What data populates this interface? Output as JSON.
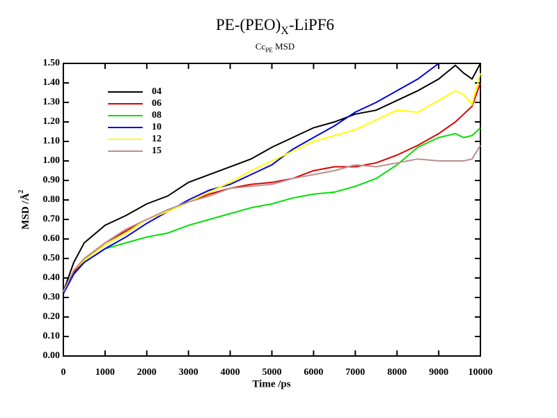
{
  "chart_data": {
    "type": "line",
    "title": [
      "PE-(PEO)",
      "X",
      "-LiPF6"
    ],
    "subtitle": [
      "Cc",
      "PE",
      " MSD"
    ],
    "x_label": "Time /ps",
    "y_label": [
      "MSD /Å",
      "2"
    ],
    "x": [
      0,
      250,
      500,
      1000,
      1500,
      2000,
      2500,
      3000,
      3500,
      4000,
      4500,
      5000,
      5500,
      6000,
      6500,
      7000,
      7500,
      8000,
      8500,
      9000,
      9400,
      9600,
      9800,
      10000
    ],
    "series": [
      {
        "name": "04",
        "color": "#000000",
        "values": [
          0.33,
          0.48,
          0.58,
          0.67,
          0.72,
          0.78,
          0.82,
          0.89,
          0.93,
          0.97,
          1.01,
          1.07,
          1.12,
          1.17,
          1.2,
          1.24,
          1.26,
          1.31,
          1.36,
          1.42,
          1.49,
          1.45,
          1.42,
          1.5
        ]
      },
      {
        "name": "06",
        "color": "#e00000",
        "values": [
          0.33,
          0.43,
          0.49,
          0.58,
          0.64,
          0.7,
          0.74,
          0.79,
          0.83,
          0.86,
          0.88,
          0.89,
          0.91,
          0.95,
          0.97,
          0.97,
          0.99,
          1.03,
          1.08,
          1.14,
          1.2,
          1.24,
          1.28,
          1.4
        ]
      },
      {
        "name": "08",
        "color": "#00e000",
        "values": [
          0.32,
          0.42,
          0.48,
          0.55,
          0.58,
          0.61,
          0.63,
          0.67,
          0.7,
          0.73,
          0.76,
          0.78,
          0.81,
          0.83,
          0.84,
          0.87,
          0.91,
          0.98,
          1.07,
          1.12,
          1.14,
          1.12,
          1.13,
          1.17
        ]
      },
      {
        "name": "10",
        "color": "#0000e0",
        "values": [
          0.32,
          0.42,
          0.48,
          0.55,
          0.61,
          0.68,
          0.74,
          0.8,
          0.85,
          0.88,
          0.93,
          0.98,
          1.06,
          1.12,
          1.18,
          1.25,
          1.3,
          1.36,
          1.42,
          1.5,
          null,
          null,
          null,
          null
        ]
      },
      {
        "name": "12",
        "color": "#ffff00",
        "values": [
          0.33,
          0.44,
          0.49,
          0.57,
          0.63,
          0.7,
          0.74,
          0.79,
          0.84,
          0.89,
          0.95,
          1.0,
          1.05,
          1.1,
          1.13,
          1.16,
          1.21,
          1.26,
          1.25,
          1.31,
          1.36,
          1.34,
          1.29,
          1.45
        ]
      },
      {
        "name": "15",
        "color": "#bc8f8f",
        "values": [
          0.33,
          0.44,
          0.5,
          0.58,
          0.65,
          0.7,
          0.75,
          0.79,
          0.82,
          0.86,
          0.87,
          0.88,
          0.91,
          0.93,
          0.95,
          0.98,
          0.97,
          0.99,
          1.01,
          1.0,
          1.0,
          1.0,
          1.01,
          1.08
        ]
      }
    ],
    "xlim": [
      0,
      10000
    ],
    "xticks": [
      0,
      1000,
      2000,
      3000,
      4000,
      5000,
      6000,
      7000,
      8000,
      9000,
      10000
    ],
    "ylim": [
      0,
      1.5
    ],
    "yticks": [
      {
        "value": 0,
        "label": "0.00"
      },
      {
        "value": 0.1,
        "label": "0.10"
      },
      {
        "value": 0.2,
        "label": "0.20"
      },
      {
        "value": 0.3,
        "label": "0.30"
      },
      {
        "value": 0.4,
        "label": "0.40"
      },
      {
        "value": 0.5,
        "label": "0.50"
      },
      {
        "value": 0.6,
        "label": "0.60"
      },
      {
        "value": 0.7,
        "label": "0.70"
      },
      {
        "value": 0.8,
        "label": "0.80"
      },
      {
        "value": 0.9,
        "label": "0.90"
      },
      {
        "value": 1.0,
        "label": "1.00"
      },
      {
        "value": 1.1,
        "label": "1.10"
      },
      {
        "value": 1.2,
        "label": "1.20"
      },
      {
        "value": 1.3,
        "label": "1.30"
      },
      {
        "value": 1.4,
        "label": "1.40"
      },
      {
        "value": 1.5,
        "label": "1.50"
      }
    ],
    "grid": false,
    "legend": "upper left"
  }
}
